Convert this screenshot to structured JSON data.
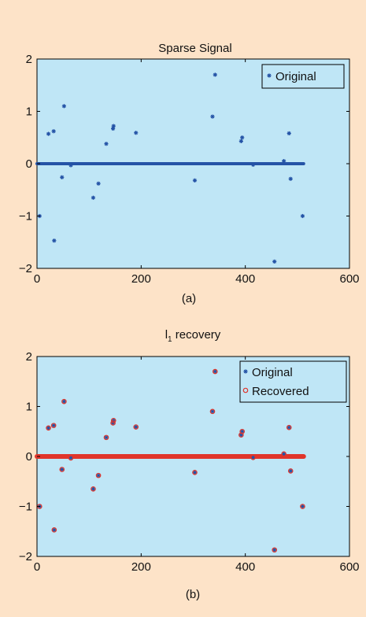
{
  "chart_data": [
    {
      "type": "scatter",
      "title": "Sparse Signal",
      "caption": "(a)",
      "xlim": [
        0,
        600
      ],
      "ylim": [
        -2,
        2
      ],
      "xticks": [
        0,
        200,
        400,
        600
      ],
      "yticks": [
        -2,
        -1,
        0,
        1,
        2
      ],
      "tick_labels": {
        "x": [
          "0",
          "200",
          "400",
          "600"
        ],
        "y": [
          "−2",
          "−1",
          "0",
          "1",
          "2"
        ]
      },
      "legend": {
        "entries": [
          "Original"
        ],
        "placement": "top-right"
      },
      "grid": false,
      "background": "#bfe6f6",
      "zero_band": {
        "x_from": 0,
        "x_to": 512,
        "value": 0
      },
      "series": [
        {
          "name": "Original",
          "marker": "star",
          "color": "#2453a6",
          "points": [
            [
              5,
              -1.0
            ],
            [
              22,
              0.57
            ],
            [
              32,
              0.62
            ],
            [
              33,
              -1.47
            ],
            [
              48,
              -0.26
            ],
            [
              52,
              1.1
            ],
            [
              65,
              -0.03
            ],
            [
              108,
              -0.65
            ],
            [
              118,
              -0.38
            ],
            [
              133,
              0.38
            ],
            [
              146,
              0.67
            ],
            [
              147,
              0.72
            ],
            [
              190,
              0.59
            ],
            [
              303,
              -0.32
            ],
            [
              337,
              0.9
            ],
            [
              342,
              1.7
            ],
            [
              392,
              0.43
            ],
            [
              394,
              0.5
            ],
            [
              415,
              -0.02
            ],
            [
              456,
              -1.87
            ],
            [
              474,
              0.05
            ],
            [
              484,
              0.58
            ],
            [
              487,
              -0.29
            ],
            [
              510,
              -1.0
            ]
          ]
        }
      ]
    },
    {
      "type": "scatter",
      "title": "l1 recovery",
      "title_parts": {
        "main": "l",
        "sub": "1",
        "rest": " recovery"
      },
      "caption": "(b)",
      "xlim": [
        0,
        600
      ],
      "ylim": [
        -2,
        2
      ],
      "xticks": [
        0,
        200,
        400,
        600
      ],
      "yticks": [
        -2,
        -1,
        0,
        1,
        2
      ],
      "tick_labels": {
        "x": [
          "0",
          "200",
          "400",
          "600"
        ],
        "y": [
          "−2",
          "−1",
          "0",
          "1",
          "2"
        ]
      },
      "legend": {
        "entries": [
          "Original",
          "Recovered"
        ],
        "placement": "top-right"
      },
      "grid": false,
      "background": "#bfe6f6",
      "zero_band": {
        "x_from": 0,
        "x_to": 512,
        "value": 0
      },
      "series": [
        {
          "name": "Original",
          "marker": "star",
          "color": "#2453a6",
          "points": [
            [
              5,
              -1.0
            ],
            [
              22,
              0.57
            ],
            [
              32,
              0.62
            ],
            [
              33,
              -1.47
            ],
            [
              48,
              -0.26
            ],
            [
              52,
              1.1
            ],
            [
              65,
              -0.03
            ],
            [
              108,
              -0.65
            ],
            [
              118,
              -0.38
            ],
            [
              133,
              0.38
            ],
            [
              146,
              0.67
            ],
            [
              147,
              0.72
            ],
            [
              190,
              0.59
            ],
            [
              303,
              -0.32
            ],
            [
              337,
              0.9
            ],
            [
              342,
              1.7
            ],
            [
              392,
              0.43
            ],
            [
              394,
              0.5
            ],
            [
              415,
              -0.02
            ],
            [
              456,
              -1.87
            ],
            [
              474,
              0.05
            ],
            [
              484,
              0.58
            ],
            [
              487,
              -0.29
            ],
            [
              510,
              -1.0
            ]
          ]
        },
        {
          "name": "Recovered",
          "marker": "circle",
          "color": "#e0352b",
          "points": [
            [
              5,
              -1.0
            ],
            [
              22,
              0.57
            ],
            [
              32,
              0.62
            ],
            [
              33,
              -1.47
            ],
            [
              48,
              -0.26
            ],
            [
              52,
              1.1
            ],
            [
              65,
              -0.03
            ],
            [
              108,
              -0.65
            ],
            [
              118,
              -0.38
            ],
            [
              133,
              0.38
            ],
            [
              146,
              0.67
            ],
            [
              147,
              0.72
            ],
            [
              190,
              0.59
            ],
            [
              303,
              -0.32
            ],
            [
              337,
              0.9
            ],
            [
              342,
              1.7
            ],
            [
              392,
              0.43
            ],
            [
              394,
              0.5
            ],
            [
              415,
              -0.02
            ],
            [
              456,
              -1.87
            ],
            [
              474,
              0.05
            ],
            [
              484,
              0.58
            ],
            [
              487,
              -0.29
            ],
            [
              510,
              -1.0
            ]
          ]
        }
      ]
    }
  ]
}
